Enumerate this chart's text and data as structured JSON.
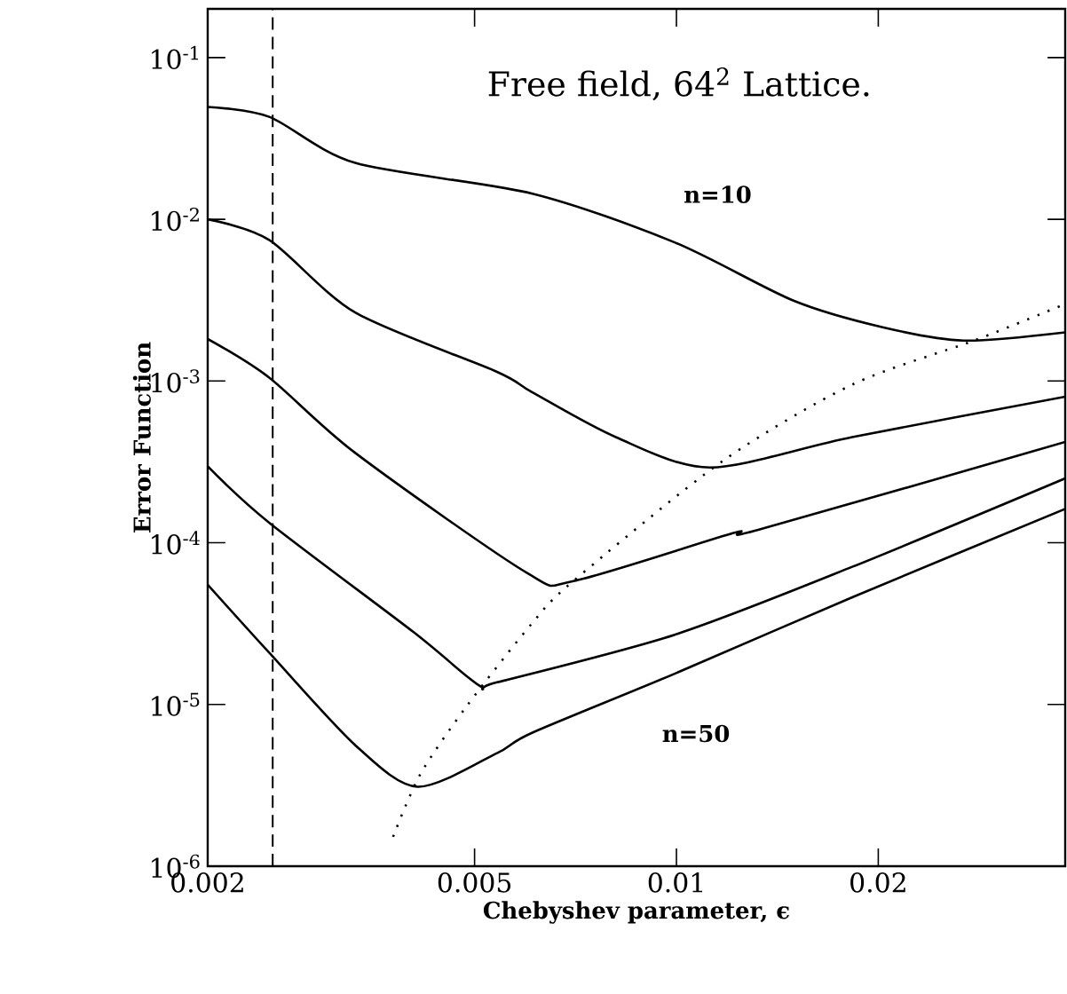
{
  "chart_data": {
    "type": "line",
    "title": "Free field, 64$^{2}$ Lattice.",
    "xlabel": "Chebyshev parameter, ϵ",
    "ylabel": "Error Function",
    "log": "xy",
    "xlim": [
      0.002,
      0.038
    ],
    "ylim": [
      1e-06,
      0.2
    ],
    "xticks": [
      0.002,
      0.005,
      0.01,
      0.02
    ],
    "yticks": [
      {
        "value": 1e-06,
        "label": "10$^{-6}$"
      },
      {
        "value": 1e-05,
        "label": "10$^{-5}$"
      },
      {
        "value": 0.0001,
        "label": "10$^{-4}$"
      },
      {
        "value": 0.001,
        "label": "10$^{-3}$"
      },
      {
        "value": 0.01,
        "label": "10$^{-2}$"
      },
      {
        "value": 0.1,
        "label": "10$^{-1}$"
      }
    ],
    "ref_lines": [
      {
        "axis": "x",
        "value": 0.0025,
        "line_style": "dashed",
        "color": "#000000"
      }
    ],
    "series": [
      {
        "name": "n=10",
        "color": "#000000",
        "line_style": "solid",
        "x": [
          0.002,
          0.00247,
          0.00332,
          0.0061,
          0.00994,
          0.01495,
          0.0203,
          0.0268,
          0.038
        ],
        "values": [
          0.0495,
          0.043,
          0.0223,
          0.0144,
          0.0072,
          0.00314,
          0.00215,
          0.00178,
          0.002
        ]
      },
      {
        "color": "#000000",
        "line_style": "solid",
        "x": [
          0.002,
          0.00247,
          0.00332,
          0.0054,
          0.0061,
          0.00812,
          0.01122,
          0.01829,
          0.038
        ],
        "values": [
          0.01,
          0.00745,
          0.00265,
          0.00114,
          0.00085,
          0.00045,
          0.000292,
          0.00045,
          0.0008
        ]
      },
      {
        "color": "#000000",
        "line_style": "solid",
        "x": [
          0.002,
          0.00247,
          0.00332,
          0.00599,
          0.00702,
          0.01216,
          0.01324,
          0.038
        ],
        "values": [
          0.00182,
          0.00105,
          0.000359,
          6.5e-05,
          5.8e-05,
          0.000115,
          0.00012,
          0.00042
        ]
      },
      {
        "color": "#000000",
        "line_style": "solid",
        "x": [
          0.002,
          0.00247,
          0.00406,
          0.00508,
          0.0054,
          0.00994,
          0.01829,
          0.038
        ],
        "values": [
          0.000297,
          0.000133,
          2.79e-05,
          1.31e-05,
          1.37e-05,
          2.7e-05,
          7.1e-05,
          0.00025
        ]
      },
      {
        "name": "n=50",
        "color": "#000000",
        "line_style": "solid",
        "x": [
          0.002,
          0.00247,
          0.00332,
          0.00411,
          0.0054,
          0.0061,
          0.00994,
          0.01829,
          0.038
        ],
        "values": [
          5.5e-05,
          2.09e-05,
          5.6e-06,
          3.1e-06,
          5e-06,
          6.7e-06,
          1.55e-05,
          4.6e-05,
          0.000162
        ]
      },
      {
        "color": "#000000",
        "line_style": "dotted",
        "x": [
          0.00378,
          0.00415,
          0.00487,
          0.0061,
          0.00702,
          0.01172,
          0.01829,
          0.028,
          0.0373
        ],
        "values": [
          1.52e-06,
          3.7e-06,
          9.8e-06,
          3.2e-05,
          5.8e-05,
          0.00032,
          0.00095,
          0.0018,
          0.0029
        ]
      }
    ]
  }
}
